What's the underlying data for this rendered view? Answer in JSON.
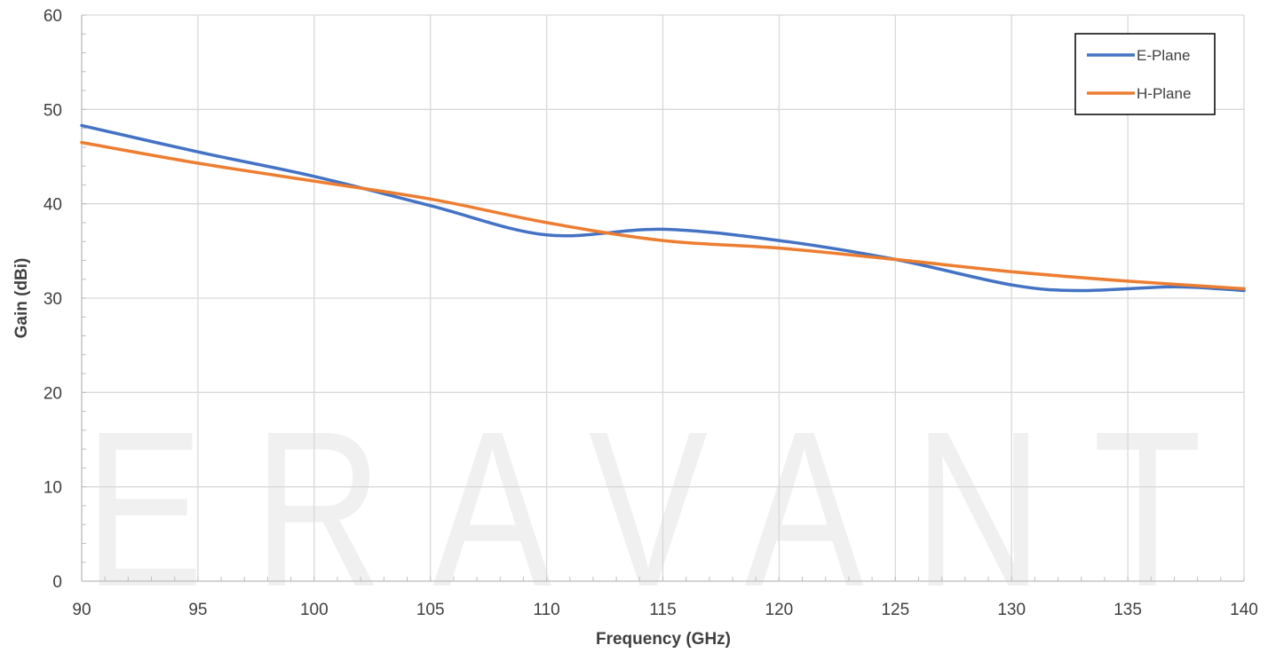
{
  "watermark": "ERAVANT",
  "chart_data": {
    "type": "line",
    "xlabel": "Frequency (GHz)",
    "ylabel": "Gain (dBi)",
    "xlim": [
      90,
      140
    ],
    "ylim": [
      0,
      60
    ],
    "x_ticks": [
      90,
      95,
      100,
      105,
      110,
      115,
      120,
      125,
      130,
      135,
      140
    ],
    "y_ticks": [
      0,
      10,
      20,
      30,
      40,
      50,
      60
    ],
    "x_minor_step": 1,
    "y_minor_step": 2,
    "grid": true,
    "legend_position": "top-right",
    "series": [
      {
        "name": "E-Plane",
        "color": "#4472C4",
        "x": [
          90,
          95,
          100,
          105,
          110,
          115,
          120,
          125,
          130,
          133,
          137,
          140
        ],
        "y": [
          48.3,
          45.5,
          42.9,
          39.8,
          36.7,
          37.3,
          36.1,
          34.1,
          31.4,
          30.8,
          31.2,
          30.8
        ]
      },
      {
        "name": "H-Plane",
        "color": "#ED7D31",
        "x": [
          90,
          95,
          100,
          105,
          110,
          115,
          120,
          125,
          130,
          135,
          140
        ],
        "y": [
          46.5,
          44.3,
          42.4,
          40.5,
          38.0,
          36.1,
          35.3,
          34.1,
          32.8,
          31.8,
          31.0
        ]
      }
    ]
  }
}
